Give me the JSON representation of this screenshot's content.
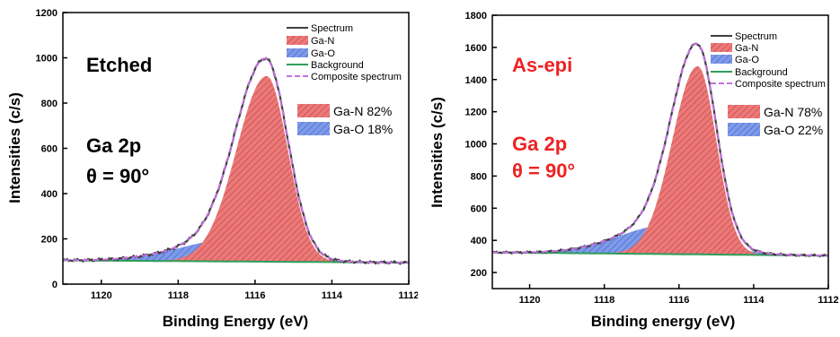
{
  "chart_data": [
    {
      "type": "area",
      "xlabel": "Binding Energy (eV)",
      "ylabel": "Intensities (c/s)",
      "xlim": [
        1121,
        1112
      ],
      "ylim": [
        0,
        1200
      ],
      "x_ticks": [
        1120,
        1118,
        1116,
        1114,
        1112
      ],
      "y_ticks": [
        0,
        200,
        400,
        600,
        800,
        1000,
        1200
      ],
      "annotations": {
        "sample": "Etched",
        "line": "Ga 2p",
        "angle": "θ = 90°",
        "color": "#000000"
      },
      "legend": [
        "Spectrum",
        "Ga-N",
        "Ga-O",
        "Background",
        "Composite spectrum"
      ],
      "component_box": [
        "Ga-N 82%",
        "Ga-O 18%"
      ],
      "background": {
        "start": 105,
        "end": 95
      },
      "components": [
        {
          "name": "Ga-N",
          "center": 1115.7,
          "height": 820,
          "sigma_left": 0.78,
          "sigma_right": 0.55,
          "color": "#e85c5c"
        },
        {
          "name": "Ga-O",
          "center": 1116.5,
          "height": 100,
          "sigma_left": 1.4,
          "sigma_right": 1.1,
          "color": "#5c7fe0"
        }
      ],
      "colors": {
        "spectrum": "#404040",
        "composite": "#c070e0",
        "background": "#2e9e5a"
      }
    },
    {
      "type": "area",
      "xlabel": "Binding energy (eV)",
      "ylabel": "Intensities (c/s)",
      "xlim": [
        1121,
        1112
      ],
      "ylim": [
        100,
        1800
      ],
      "x_ticks": [
        1120,
        1118,
        1116,
        1114,
        1112
      ],
      "y_ticks": [
        200,
        400,
        600,
        800,
        1000,
        1200,
        1400,
        1600,
        1800
      ],
      "annotations": {
        "sample": "As-epi",
        "line": "Ga 2p",
        "angle": "θ = 90°",
        "color": "#ee2222"
      },
      "legend": [
        "Spectrum",
        "Ga-N",
        "Ga-O",
        "Background",
        "Composite spectrum"
      ],
      "component_box": [
        "Ga-N 78%",
        "Ga-O 22%"
      ],
      "background": {
        "start": 325,
        "end": 305
      },
      "components": [
        {
          "name": "Ga-N",
          "center": 1115.5,
          "height": 1170,
          "sigma_left": 0.68,
          "sigma_right": 0.5,
          "color": "#e85c5c"
        },
        {
          "name": "Ga-O",
          "center": 1116.3,
          "height": 180,
          "sigma_left": 1.3,
          "sigma_right": 1.1,
          "color": "#5c7fe0"
        }
      ],
      "colors": {
        "spectrum": "#404040",
        "composite": "#c070e0",
        "background": "#2e9e5a"
      }
    }
  ]
}
